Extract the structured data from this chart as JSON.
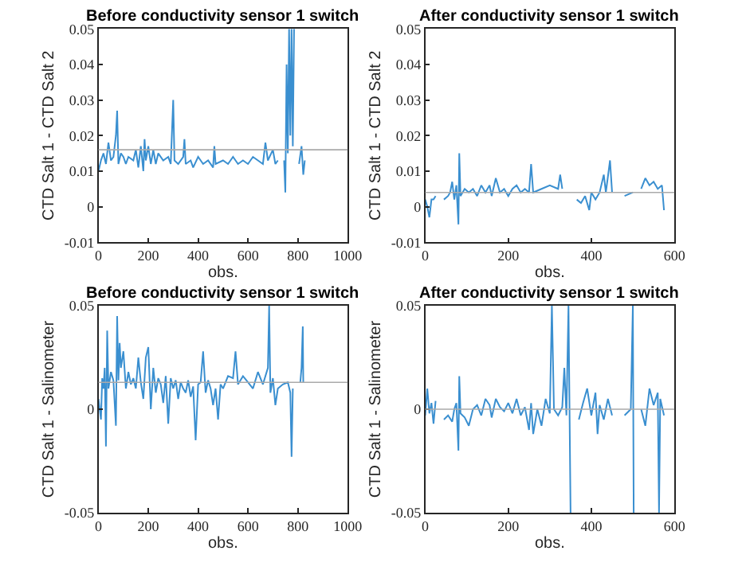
{
  "chart_data": [
    {
      "type": "line",
      "title": "Before conductivity sensor 1 switch",
      "xlabel": "obs.",
      "ylabel": "CTD Salt 1 - CTD Salt 2",
      "color": "#3a8fd0",
      "line_style": "solid",
      "x": [
        0,
        10,
        20,
        30,
        40,
        50,
        60,
        70,
        75,
        80,
        90,
        100,
        110,
        120,
        140,
        150,
        160,
        170,
        180,
        185,
        190,
        200,
        210,
        220,
        230,
        240,
        260,
        280,
        290,
        300,
        305,
        320,
        340,
        345,
        350,
        370,
        380,
        400,
        420,
        440,
        460,
        465,
        470,
        500,
        520,
        540,
        560,
        580,
        600,
        620,
        640,
        660,
        670,
        680,
        700,
        710,
        720,
        730,
        745,
        750,
        755,
        760,
        765,
        770,
        775,
        780,
        785,
        790,
        805,
        815,
        822,
        828
      ],
      "values": [
        0.01,
        0.013,
        0.015,
        0.012,
        0.018,
        0.013,
        0.014,
        0.02,
        0.027,
        0.012,
        0.015,
        0.014,
        0.012,
        0.014,
        0.013,
        0.016,
        0.011,
        0.017,
        0.01,
        0.019,
        0.013,
        0.017,
        0.012,
        0.016,
        0.012,
        0.015,
        0.013,
        0.014,
        0.012,
        0.03,
        0.013,
        0.012,
        0.014,
        0.019,
        0.012,
        0.013,
        0.011,
        0.014,
        0.012,
        0.013,
        0.011,
        0.017,
        0.012,
        0.013,
        0.012,
        0.014,
        0.012,
        0.013,
        0.012,
        0.014,
        0.013,
        0.012,
        0.018,
        0.013,
        0.016,
        0.012,
        0.013,
        null,
        0.013,
        0.004,
        0.04,
        0.015,
        0.05,
        0.02,
        0.05,
        0.017,
        0.05,
        null,
        0.012,
        0.017,
        0.009,
        0.013
      ],
      "xlim": [
        0,
        1000
      ],
      "xticks": [
        0,
        200,
        400,
        600,
        800,
        1000
      ],
      "ylim": [
        -0.01,
        0.05
      ],
      "yticks": [
        -0.01,
        0,
        0.01,
        0.02,
        0.03,
        0.04,
        0.05
      ],
      "ref_lines": [
        {
          "axis": "y",
          "value": 0.016,
          "color": "#aaaaaa"
        }
      ]
    },
    {
      "type": "line",
      "title": "After conductivity sensor 1 switch",
      "xlabel": "obs.",
      "ylabel": "CTD Salt 1 - CTD Salt 2",
      "color": "#3a8fd0",
      "line_style": "solid",
      "x": [
        0,
        5,
        10,
        15,
        20,
        25,
        30,
        45,
        55,
        60,
        65,
        70,
        75,
        80,
        82,
        85,
        95,
        105,
        115,
        125,
        135,
        145,
        155,
        160,
        170,
        180,
        190,
        200,
        210,
        220,
        230,
        240,
        250,
        255,
        260,
        280,
        300,
        320,
        325,
        330,
        340,
        365,
        375,
        385,
        395,
        400,
        410,
        420,
        430,
        435,
        445,
        450,
        460,
        480,
        500,
        510,
        520,
        530,
        540,
        550,
        560,
        570,
        575
      ],
      "values": [
        0.002,
        0.0,
        -0.003,
        0.002,
        0.002,
        0.003,
        null,
        0.002,
        0.003,
        0.004,
        0.007,
        0.002,
        0.006,
        -0.005,
        0.015,
        0.003,
        0.005,
        0.004,
        0.005,
        0.003,
        0.006,
        0.004,
        0.006,
        0.003,
        0.008,
        0.004,
        0.005,
        0.003,
        0.005,
        0.006,
        0.004,
        0.005,
        0.004,
        0.012,
        0.004,
        0.005,
        0.006,
        0.005,
        0.009,
        0.005,
        null,
        0.002,
        0.001,
        0.003,
        -0.001,
        0.004,
        0.002,
        0.004,
        0.009,
        0.004,
        0.013,
        0.004,
        null,
        0.003,
        0.004,
        null,
        0.005,
        0.008,
        0.006,
        0.007,
        0.005,
        0.006,
        -0.001
      ],
      "xlim": [
        0,
        600
      ],
      "xticks": [
        0,
        200,
        400,
        600
      ],
      "ylim": [
        -0.01,
        0.05
      ],
      "yticks": [
        -0.01,
        0,
        0.01,
        0.02,
        0.03,
        0.04,
        0.05
      ],
      "ref_lines": [
        {
          "axis": "y",
          "value": 0.004,
          "color": "#aaaaaa"
        }
      ]
    },
    {
      "type": "line",
      "title": "Before conductivity sensor 1 switch",
      "xlabel": "obs.",
      "ylabel": "CTD Salt 1 - Salinometer",
      "color": "#3a8fd0",
      "line_style": "solid",
      "x": [
        0,
        10,
        15,
        20,
        25,
        30,
        35,
        40,
        50,
        60,
        70,
        75,
        80,
        85,
        90,
        100,
        110,
        120,
        130,
        140,
        150,
        160,
        170,
        180,
        190,
        200,
        210,
        220,
        230,
        240,
        250,
        260,
        270,
        280,
        290,
        300,
        310,
        320,
        330,
        340,
        350,
        360,
        370,
        380,
        390,
        400,
        410,
        420,
        430,
        440,
        450,
        460,
        470,
        480,
        490,
        500,
        520,
        540,
        550,
        560,
        580,
        600,
        620,
        640,
        660,
        680,
        685,
        690,
        700,
        710,
        720,
        740,
        760,
        770,
        775,
        780,
        790,
        810,
        815,
        820,
        822
      ],
      "values": [
        0.005,
        -0.005,
        0.015,
        0.01,
        0.02,
        -0.018,
        0.038,
        0.01,
        0.018,
        0.014,
        -0.008,
        0.045,
        0.014,
        0.032,
        0.02,
        0.028,
        0.01,
        0.018,
        0.012,
        0.015,
        0.01,
        0.025,
        0.013,
        0.005,
        0.025,
        0.03,
        0.0,
        0.02,
        0.008,
        0.015,
        0.012,
        0.003,
        0.016,
        -0.007,
        0.015,
        0.01,
        0.014,
        0.005,
        0.013,
        0.01,
        0.008,
        0.014,
        0.006,
        0.011,
        -0.015,
        0.012,
        0.013,
        0.028,
        0.008,
        0.014,
        0.01,
        0.002,
        0.01,
        -0.005,
        0.012,
        0.01,
        0.016,
        0.015,
        0.028,
        0.012,
        0.016,
        0.013,
        0.01,
        0.018,
        0.012,
        0.02,
        0.05,
        0.008,
        0.015,
        0.002,
        0.01,
        0.012,
        0.013,
        0.008,
        -0.023,
        0.01,
        null,
        0.013,
        0.02,
        0.04,
        0.013
      ],
      "xlim": [
        0,
        1000
      ],
      "xticks": [
        0,
        200,
        400,
        600,
        800,
        1000
      ],
      "ylim": [
        -0.05,
        0.05
      ],
      "yticks": [
        -0.05,
        0,
        0.05
      ],
      "ref_lines": [
        {
          "axis": "y",
          "value": 0.013,
          "color": "#aaaaaa"
        }
      ]
    },
    {
      "type": "line",
      "title": "After conductivity sensor 1 switch",
      "xlabel": "obs.",
      "ylabel": "CTD Salt 1 - Salinometer",
      "color": "#3a8fd0",
      "line_style": "solid",
      "x": [
        0,
        5,
        10,
        15,
        20,
        25,
        30,
        45,
        55,
        65,
        70,
        75,
        80,
        82,
        85,
        95,
        105,
        115,
        125,
        135,
        145,
        155,
        160,
        170,
        180,
        190,
        200,
        210,
        220,
        230,
        240,
        250,
        255,
        260,
        270,
        280,
        290,
        300,
        305,
        310,
        320,
        330,
        335,
        340,
        345,
        350,
        355,
        370,
        380,
        390,
        400,
        410,
        415,
        420,
        430,
        440,
        450,
        460,
        480,
        495,
        500,
        502,
        505,
        520,
        530,
        540,
        550,
        560,
        563,
        566,
        575
      ],
      "values": [
        -0.003,
        0.01,
        -0.002,
        0.003,
        -0.007,
        0.004,
        null,
        -0.005,
        -0.003,
        -0.006,
        0.0,
        0.003,
        -0.02,
        0.016,
        -0.002,
        -0.004,
        -0.008,
        0.0,
        0.002,
        -0.003,
        0.005,
        0.002,
        -0.004,
        0.005,
        0.001,
        -0.001,
        0.003,
        -0.002,
        0.005,
        -0.003,
        0.001,
        -0.01,
        0.003,
        -0.012,
        0.0,
        -0.008,
        0.005,
        -0.002,
        0.05,
        0.0,
        -0.003,
        0.001,
        0.02,
        -0.003,
        0.05,
        -0.05,
        null,
        -0.005,
        0.003,
        0.01,
        -0.003,
        0.008,
        -0.012,
        0.002,
        -0.005,
        0.005,
        -0.003,
        null,
        -0.003,
        0.0,
        0.05,
        -0.05,
        null,
        0.0,
        -0.008,
        0.01,
        0.002,
        0.008,
        -0.05,
        0.005,
        -0.003
      ],
      "xlim": [
        0,
        600
      ],
      "xticks": [
        0,
        200,
        400,
        600
      ],
      "ylim": [
        -0.05,
        0.05
      ],
      "yticks": [
        -0.05,
        0,
        0.05
      ],
      "ref_lines": [
        {
          "axis": "y",
          "value": 0,
          "color": "#aaaaaa"
        }
      ]
    }
  ]
}
